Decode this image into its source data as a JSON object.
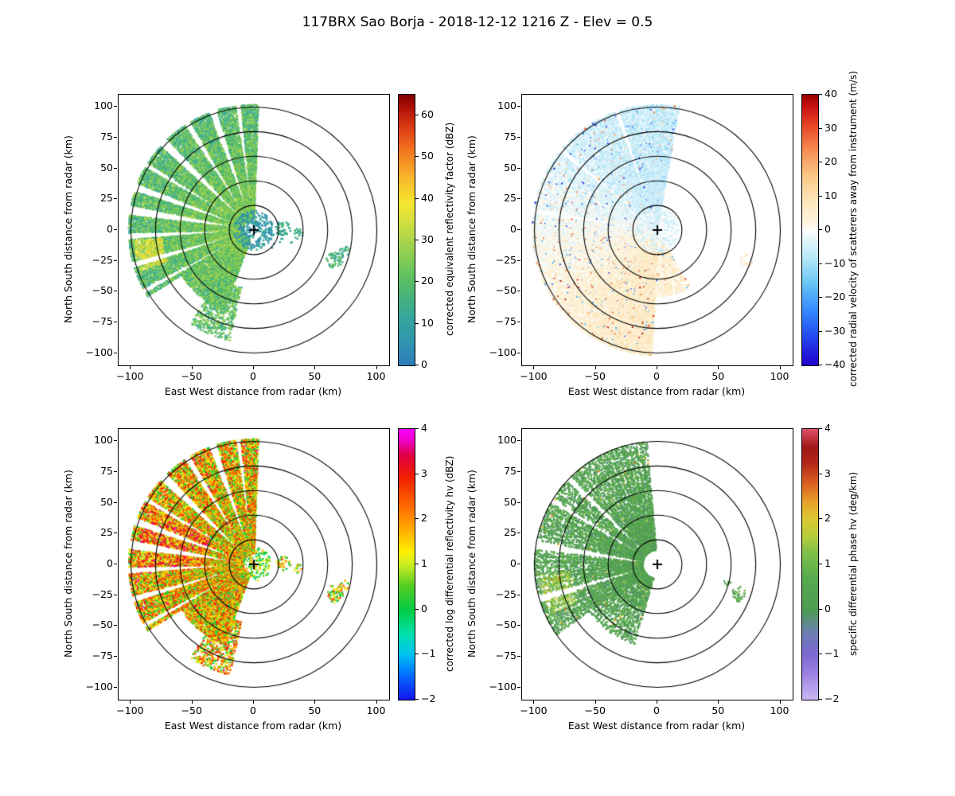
{
  "chart_data": {
    "type": "heatmap",
    "subtype": "radar_ppi_grid",
    "figure_title": "117BRX Sao Borja - 2018-12-12 1216 Z -  Elev = 0.5",
    "radar_site": "117BRX Sao Borja",
    "scan_time": "2018-12-12 1216 Z",
    "elevation_deg": 0.5,
    "shared": {
      "xlabel": "East West distance from radar (km)",
      "ylabel": "North South distance from radar (km)",
      "xlim": [
        -110,
        110
      ],
      "ylim": [
        -110,
        110
      ],
      "x_ticks": [
        -100,
        -50,
        0,
        50,
        100
      ],
      "y_ticks": [
        100,
        75,
        50,
        25,
        0,
        -25,
        -50,
        -75,
        -100
      ],
      "range_rings_km": [
        20,
        40,
        60,
        80,
        100
      ],
      "center_marker": "+",
      "grid": false,
      "legend": "colorbar-right"
    },
    "panels": [
      {
        "id": "reflectivity",
        "colorbar_label": "corrected equivalent reflectivity factor (dBZ)",
        "vmin": 0,
        "vmax": 65,
        "cbar_ticks": [
          0,
          10,
          20,
          30,
          40,
          50,
          60
        ],
        "colormap": [
          [
            0.0,
            "#2e7ebc"
          ],
          [
            0.08,
            "#2f93b0"
          ],
          [
            0.18,
            "#35a79b"
          ],
          [
            0.28,
            "#4eb86f"
          ],
          [
            0.34,
            "#66c35d"
          ],
          [
            0.44,
            "#9ed24f"
          ],
          [
            0.54,
            "#d8e13d"
          ],
          [
            0.6,
            "#f5e62e"
          ],
          [
            0.7,
            "#f7b32a"
          ],
          [
            0.8,
            "#f2711f"
          ],
          [
            0.88,
            "#db3b14"
          ],
          [
            0.95,
            "#b01208"
          ],
          [
            1.0,
            "#7f0000"
          ]
        ],
        "echo": {
          "seed": 11,
          "wedges": [
            {
              "t0": 88,
              "t1": 212,
              "r0": 9,
              "r1": 102,
              "density": 0.93
            },
            {
              "t0": 212,
              "t1": 250,
              "r0": 9,
              "r1": 70,
              "density": 0.85
            },
            {
              "t0": 236,
              "t1": 258,
              "r0": 48,
              "r1": 92,
              "density": 0.45
            }
          ],
          "spokes": [
            {
              "a": 97,
              "w": 1.2
            },
            {
              "a": 109,
              "w": 1.5
            },
            {
              "a": 122,
              "w": 1.2
            },
            {
              "a": 136,
              "w": 1.8
            },
            {
              "a": 149,
              "w": 1.2
            },
            {
              "a": 160,
              "w": 1.5
            },
            {
              "a": 171,
              "w": 2.2
            },
            {
              "a": 183,
              "w": 1.4
            },
            {
              "a": 196,
              "w": 1.6
            },
            {
              "a": 209,
              "w": 1.3
            }
          ],
          "params": {
            "mode": "base",
            "base": 26,
            "noise": 9,
            "rgrad": -7,
            "outlier_p": 0,
            "outlier_add": 0
          },
          "hotspots": [
            {
              "t0": 185,
              "t1": 200,
              "r0": 75,
              "r1": 98,
              "boost": 16
            }
          ],
          "center": {
            "r": 16,
            "density": 0.75,
            "base": 8,
            "noise": 7
          },
          "cells": [
            {
              "x": 24,
              "y": 1,
              "r": 6,
              "density": 0.7,
              "base": 15,
              "noise": 6
            },
            {
              "x": 36,
              "y": -3,
              "r": 4,
              "density": 0.7,
              "base": 14,
              "noise": 5
            },
            {
              "x": 20,
              "y": -6,
              "r": 12,
              "density": 0.1,
              "base": 8,
              "noise": 6
            },
            {
              "x": 66,
              "y": -24,
              "r": 7,
              "density": 0.7,
              "base": 17,
              "noise": 6
            },
            {
              "x": 74,
              "y": -17,
              "r": 4,
              "density": 0.6,
              "base": 15,
              "noise": 5
            }
          ]
        }
      },
      {
        "id": "velocity",
        "colorbar_label": "corrected radial velocity of scatterers away from instrument (m/s)",
        "vmin": -40,
        "vmax": 40,
        "cbar_ticks": [
          -40,
          -30,
          -20,
          -10,
          0,
          10,
          20,
          30,
          40
        ],
        "colormap": [
          [
            0.0,
            "#2200cc"
          ],
          [
            0.1,
            "#2244ee"
          ],
          [
            0.2,
            "#3388ff"
          ],
          [
            0.3,
            "#66c4f4"
          ],
          [
            0.4,
            "#b8e8f8"
          ],
          [
            0.48,
            "#eef8fb"
          ],
          [
            0.5,
            "#ffffff"
          ],
          [
            0.52,
            "#fdf6e3"
          ],
          [
            0.6,
            "#fce8bd"
          ],
          [
            0.7,
            "#fbc888"
          ],
          [
            0.8,
            "#f58a50"
          ],
          [
            0.88,
            "#ea4b28"
          ],
          [
            0.95,
            "#cc1414"
          ],
          [
            1.0,
            "#990000"
          ]
        ],
        "echo": {
          "seed": 22,
          "wedges": [
            {
              "t0": 80,
              "t1": 268,
              "r0": 4,
              "r1": 102,
              "density": 0.96
            },
            {
              "t0": 268,
              "t1": 300,
              "r0": 10,
              "r1": 55,
              "density": 0.3
            }
          ],
          "spokes": [
            {
              "a": 109,
              "w": 1.0
            },
            {
              "a": 140,
              "w": 1.0
            },
            {
              "a": 171,
              "w": 1.4
            }
          ],
          "params": {
            "mode": "velocity",
            "amp": 6,
            "noise": 4.5,
            "outlier_p": 0.035,
            "outlier_add": 22
          },
          "hotspots": [],
          "center": {
            "r": 18,
            "density": 0.9,
            "base": -3,
            "noise": 4
          },
          "cells": [
            {
              "x": 72,
              "y": -25,
              "r": 5,
              "density": 0.4,
              "base": 6,
              "noise": 8
            }
          ]
        }
      },
      {
        "id": "differential_reflectivity",
        "colorbar_label": "corrected log differential reflectivity hv (dBZ)",
        "vmin": -2,
        "vmax": 4,
        "cbar_ticks": [
          -2,
          -1,
          0,
          1,
          2,
          3,
          4
        ],
        "colormap": [
          [
            0.0,
            "#1414f0"
          ],
          [
            0.1,
            "#0077ff"
          ],
          [
            0.17,
            "#00c4f0"
          ],
          [
            0.24,
            "#00e0b0"
          ],
          [
            0.33,
            "#00cc44"
          ],
          [
            0.42,
            "#55cc22"
          ],
          [
            0.5,
            "#ccee22"
          ],
          [
            0.55,
            "#ffee00"
          ],
          [
            0.63,
            "#ffaa00"
          ],
          [
            0.72,
            "#ff6600"
          ],
          [
            0.82,
            "#f22000"
          ],
          [
            0.9,
            "#e00040"
          ],
          [
            0.96,
            "#ee00cc"
          ],
          [
            1.0,
            "#ff00ff"
          ]
        ],
        "echo": {
          "seed": 33,
          "wedges": [
            {
              "t0": 88,
              "t1": 212,
              "r0": 9,
              "r1": 102,
              "density": 0.93
            },
            {
              "t0": 212,
              "t1": 250,
              "r0": 9,
              "r1": 70,
              "density": 0.85
            },
            {
              "t0": 236,
              "t1": 258,
              "r0": 48,
              "r1": 92,
              "density": 0.45
            }
          ],
          "spokes": [
            {
              "a": 97,
              "w": 1.2
            },
            {
              "a": 109,
              "w": 1.5
            },
            {
              "a": 122,
              "w": 1.2
            },
            {
              "a": 136,
              "w": 1.8
            },
            {
              "a": 149,
              "w": 1.2
            },
            {
              "a": 160,
              "w": 1.5
            },
            {
              "a": 171,
              "w": 2.2
            },
            {
              "a": 183,
              "w": 1.4
            },
            {
              "a": 196,
              "w": 1.6
            },
            {
              "a": 209,
              "w": 1.3
            }
          ],
          "params": {
            "mode": "base",
            "base": 1.5,
            "noise": 1.6,
            "rgrad": 0,
            "outlier_p": 0.02,
            "outlier_add": 1.5
          },
          "hotspots": [
            {
              "t0": 150,
              "t1": 185,
              "r0": 40,
              "r1": 95,
              "boost": 0.7
            }
          ],
          "center": {
            "r": 14,
            "density": 0.5,
            "base": 0.8,
            "noise": 1.2
          },
          "cells": [
            {
              "x": 24,
              "y": 1,
              "r": 6,
              "density": 0.7,
              "base": 1.2,
              "noise": 1.4
            },
            {
              "x": 36,
              "y": -3,
              "r": 4,
              "density": 0.6,
              "base": 1.0,
              "noise": 1.2
            },
            {
              "x": 66,
              "y": -24,
              "r": 7,
              "density": 0.7,
              "base": 1.4,
              "noise": 1.5
            },
            {
              "x": 74,
              "y": -17,
              "r": 4,
              "density": 0.6,
              "base": 1.2,
              "noise": 1.2
            }
          ]
        }
      },
      {
        "id": "specific_differential_phase",
        "colorbar_label": "specific differential phase hv (deg/km)",
        "vmin": -2,
        "vmax": 4,
        "cbar_ticks": [
          -2,
          -1,
          0,
          1,
          2,
          3,
          4
        ],
        "colormap": [
          [
            0.0,
            "#c9b8f2"
          ],
          [
            0.1,
            "#9a7fe0"
          ],
          [
            0.17,
            "#7a68cf"
          ],
          [
            0.25,
            "#6b7fb0"
          ],
          [
            0.33,
            "#4e9b52"
          ],
          [
            0.45,
            "#57ab4e"
          ],
          [
            0.54,
            "#7fbf4a"
          ],
          [
            0.6,
            "#b3cc3e"
          ],
          [
            0.67,
            "#ddc832"
          ],
          [
            0.73,
            "#e8a12b"
          ],
          [
            0.8,
            "#d95f20"
          ],
          [
            0.87,
            "#b42a18"
          ],
          [
            0.93,
            "#a01616"
          ],
          [
            1.0,
            "#e04f68"
          ]
        ],
        "echo": {
          "seed": 44,
          "wedges": [
            {
              "t0": 95,
              "t1": 215,
              "r0": 12,
              "r1": 100,
              "density": 0.8
            },
            {
              "t0": 215,
              "t1": 255,
              "r0": 12,
              "r1": 68,
              "density": 0.55
            }
          ],
          "spokes": [
            {
              "a": 136,
              "w": 1.2
            },
            {
              "a": 149,
              "w": 1.2
            },
            {
              "a": 171,
              "w": 2.0
            },
            {
              "a": 196,
              "w": 1.3
            }
          ],
          "streak": {
            "freq": 60,
            "min": 0.25
          },
          "params": {
            "mode": "base",
            "base": 0.35,
            "noise": 0.6,
            "rgrad": 0,
            "outlier_p": 0.02,
            "outlier_add": 1.3
          },
          "hotspots": [
            {
              "t0": 185,
              "t1": 205,
              "r0": 72,
              "r1": 96,
              "boost": 1.1
            }
          ],
          "center": {
            "r": 0,
            "density": 0,
            "base": 0,
            "noise": 0
          },
          "cells": [
            {
              "x": 66,
              "y": -24,
              "r": 6,
              "density": 0.6,
              "base": 0.5,
              "noise": 0.7
            },
            {
              "x": 57,
              "y": -14,
              "r": 3,
              "density": 0.5,
              "base": 0.4,
              "noise": 0.5
            }
          ]
        }
      }
    ]
  }
}
